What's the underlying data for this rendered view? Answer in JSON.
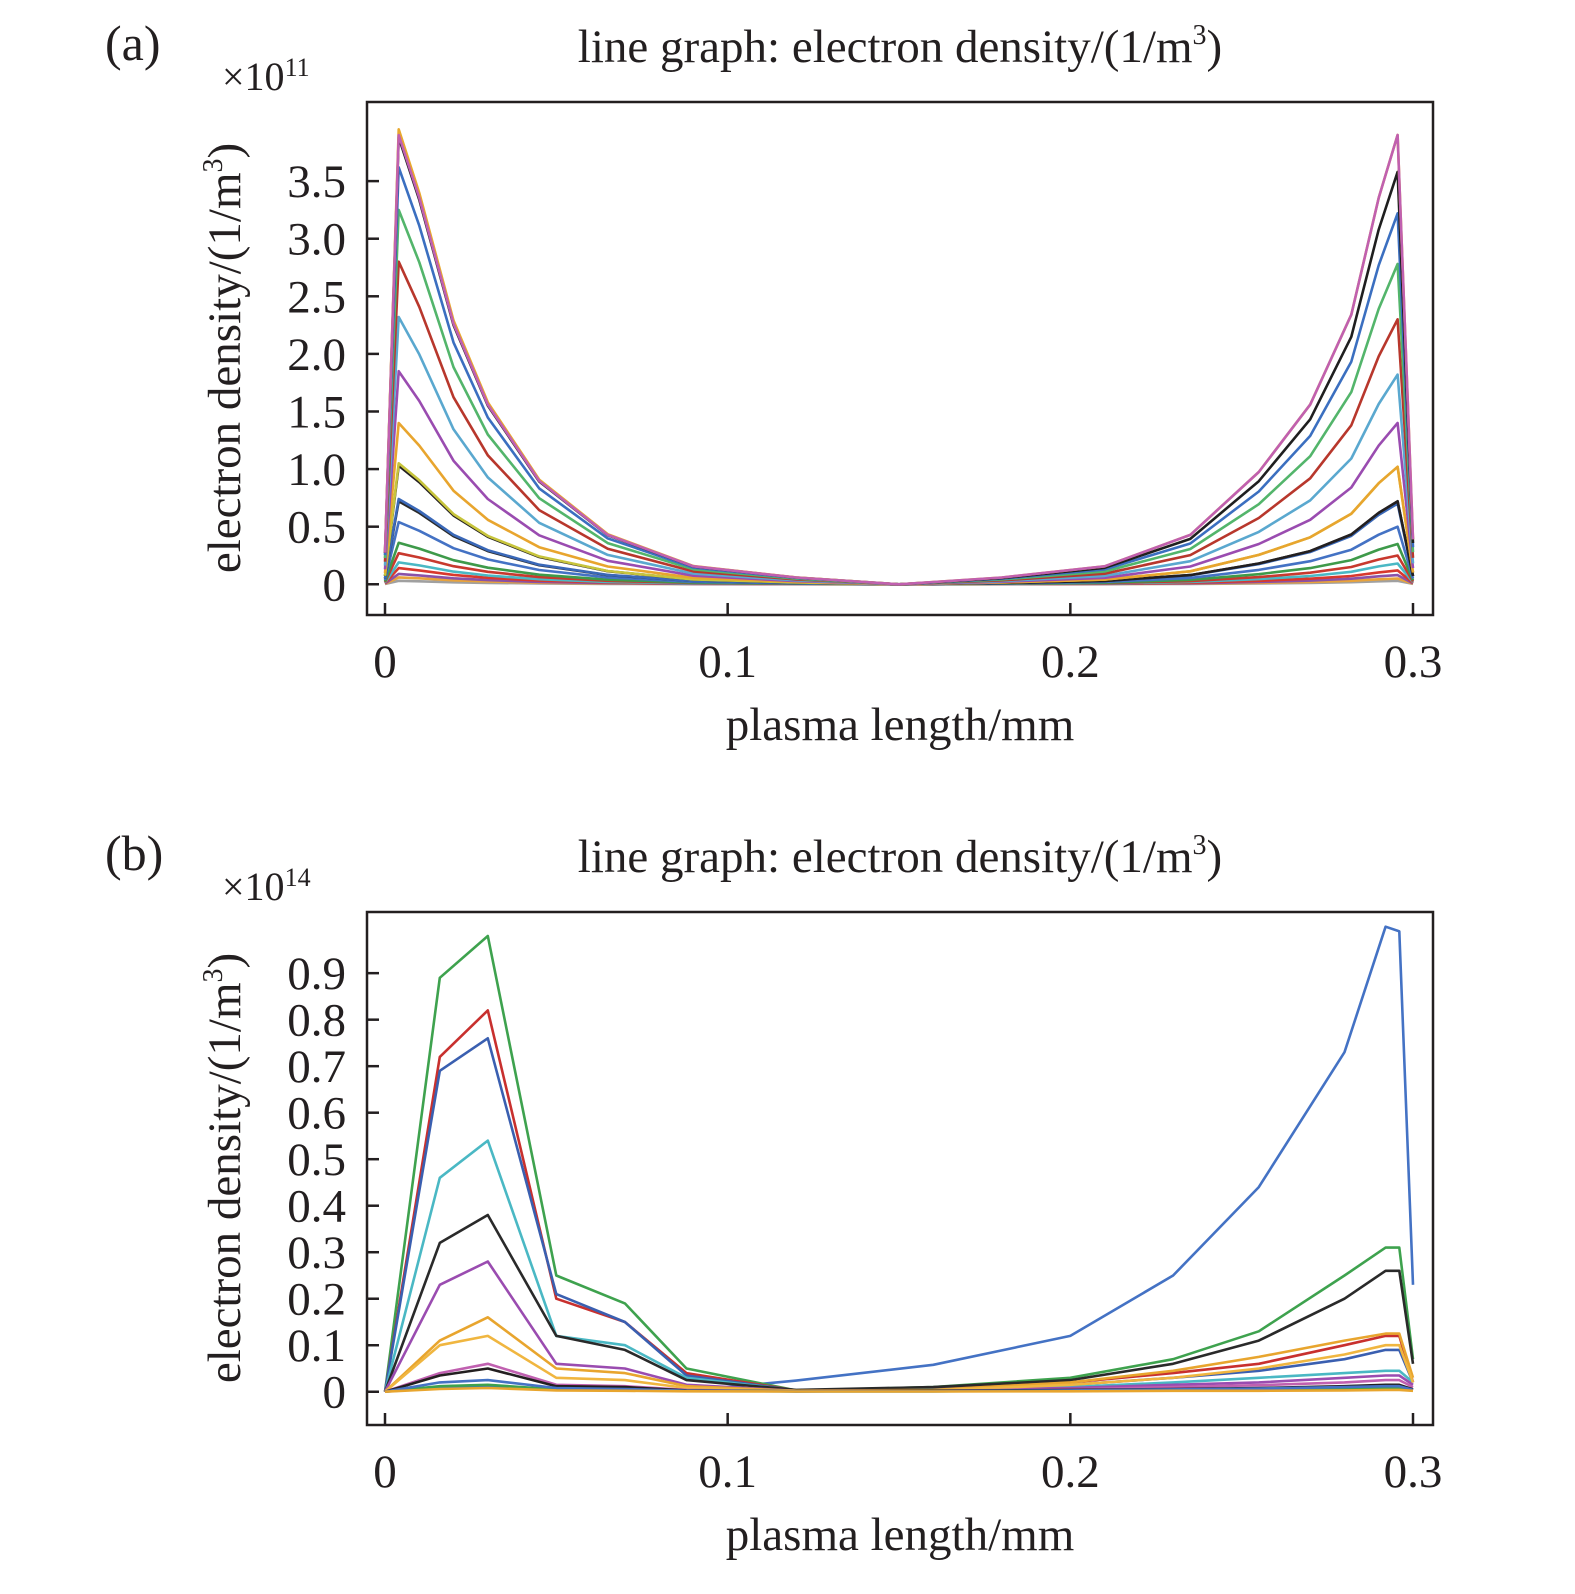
{
  "chart_data": [
    {
      "type": "line",
      "panel_label": "(a)",
      "title": "line graph: electron density/(1/m³)",
      "title_main": "line graph: electron density/(1/m",
      "title_sup": "3",
      "title_close": ")",
      "xlabel": "plasma length/mm",
      "ylabel": "electron density/(1/m³)",
      "ylabel_main": "electron density/(1/m",
      "ylabel_sup": "3",
      "ylabel_close": ")",
      "scale_prefix": "×10",
      "scale_exponent": "11",
      "xlim": [
        0,
        0.3
      ],
      "ylim": [
        -0.18,
        4.1
      ],
      "x_ticks": [
        0,
        0.1,
        0.2,
        0.3
      ],
      "x_tick_labels": [
        "0",
        "0.1",
        "0.2",
        "0.3"
      ],
      "y_ticks": [
        0,
        0.5,
        1.0,
        1.5,
        2.0,
        2.5,
        3.0,
        3.5
      ],
      "y_tick_labels": [
        "0",
        "0.5",
        "1.0",
        "1.5",
        "2.0",
        "2.5",
        "3.0",
        "3.5"
      ],
      "x": [
        0,
        0.004,
        0.01,
        0.02,
        0.03,
        0.045,
        0.065,
        0.09,
        0.12,
        0.15,
        0.18,
        0.21,
        0.235,
        0.255,
        0.27,
        0.282,
        0.29,
        0.2955,
        0.3
      ],
      "series": [
        {
          "color": "#a0a0a0",
          "left_peak": 0.03,
          "right_peak": 0.03
        },
        {
          "color": "#e8a33c",
          "left_peak": 0.06,
          "right_peak": 0.05
        },
        {
          "color": "#8a52a8",
          "left_peak": 0.09,
          "right_peak": 0.08
        },
        {
          "color": "#d8382d",
          "left_peak": 0.14,
          "right_peak": 0.12
        },
        {
          "color": "#4ab8c4",
          "left_peak": 0.19,
          "right_peak": 0.18
        },
        {
          "color": "#c8392e",
          "left_peak": 0.27,
          "right_peak": 0.25
        },
        {
          "color": "#3e9a4a",
          "left_peak": 0.36,
          "right_peak": 0.35
        },
        {
          "color": "#4472c4",
          "left_peak": 0.54,
          "right_peak": 0.5
        },
        {
          "color": "#2a2a2a",
          "left_peak": 0.72,
          "right_peak": 0.72
        },
        {
          "color": "#3a68b8",
          "left_peak": 0.74,
          "right_peak": 0.7
        },
        {
          "color": "#231f20",
          "left_peak": 1.03,
          "right_peak": 0.72
        },
        {
          "color": "#c7c43c",
          "left_peak": 1.05,
          "right_peak": 1.02
        },
        {
          "color": "#e8a52e",
          "left_peak": 1.4,
          "right_peak": 1.02
        },
        {
          "color": "#9a4cb0",
          "left_peak": 1.85,
          "right_peak": 1.4
        },
        {
          "color": "#5aa8cf",
          "left_peak": 2.32,
          "right_peak": 1.82
        },
        {
          "color": "#b8372c",
          "left_peak": 2.8,
          "right_peak": 2.3
        },
        {
          "color": "#53b56b",
          "left_peak": 3.25,
          "right_peak": 2.78
        },
        {
          "color": "#3b6fc0",
          "left_peak": 3.62,
          "right_peak": 3.22
        },
        {
          "color": "#1f1f1f",
          "left_peak": 3.88,
          "right_peak": 3.58
        },
        {
          "color": "#e8a82e",
          "left_peak": 3.95,
          "right_peak": 3.9
        },
        {
          "color": "#c060b0",
          "left_peak": 3.9,
          "right_peak": 3.9
        }
      ]
    },
    {
      "type": "line",
      "panel_label": "(b)",
      "title": "line graph: electron density/(1/m³)",
      "title_main": "line graph: electron density/(1/m",
      "title_sup": "3",
      "title_close": ")",
      "xlabel": "plasma length/mm",
      "ylabel": "electron density/(1/m³)",
      "ylabel_main": "electron density/(1/m",
      "ylabel_sup": "3",
      "ylabel_close": ")",
      "scale_prefix": "×10",
      "scale_exponent": "14",
      "xlim": [
        0,
        0.3
      ],
      "ylim": [
        -0.05,
        1.01
      ],
      "x_ticks": [
        0,
        0.1,
        0.2,
        0.3
      ],
      "x_tick_labels": [
        "0",
        "0.1",
        "0.2",
        "0.3"
      ],
      "y_ticks": [
        0,
        0.1,
        0.2,
        0.3,
        0.4,
        0.5,
        0.6,
        0.7,
        0.8,
        0.9
      ],
      "y_tick_labels": [
        "0",
        "0.1",
        "0.2",
        "0.3",
        "0.4",
        "0.5",
        "0.6",
        "0.7",
        "0.8",
        "0.9"
      ],
      "x": [
        0,
        0.016,
        0.03,
        0.05,
        0.07,
        0.088,
        0.12,
        0.16,
        0.2,
        0.23,
        0.255,
        0.28,
        0.292,
        0.296,
        0.3
      ],
      "series": [
        {
          "color": "#4472c4",
          "values": [
            0,
            0.009,
            0.012,
            0.006,
            0.005,
            0.002,
            0.024,
            0.058,
            0.12,
            0.25,
            0.44,
            0.73,
            1.0,
            0.99,
            0.23
          ]
        },
        {
          "color": "#3ea24e",
          "values": [
            0,
            0.89,
            0.98,
            0.25,
            0.19,
            0.05,
            0.003,
            0.01,
            0.03,
            0.07,
            0.13,
            0.25,
            0.31,
            0.31,
            0.07
          ]
        },
        {
          "color": "#c8302e",
          "values": [
            0,
            0.72,
            0.82,
            0.2,
            0.15,
            0.04,
            0.003,
            0.006,
            0.02,
            0.04,
            0.06,
            0.1,
            0.12,
            0.12,
            0.02
          ]
        },
        {
          "color": "#3a5fb0",
          "values": [
            0,
            0.69,
            0.76,
            0.21,
            0.15,
            0.035,
            0.003,
            0.005,
            0.015,
            0.03,
            0.045,
            0.07,
            0.09,
            0.09,
            0.02
          ]
        },
        {
          "color": "#4ab8c4",
          "values": [
            0,
            0.46,
            0.54,
            0.12,
            0.1,
            0.03,
            0.003,
            0.004,
            0.01,
            0.02,
            0.03,
            0.04,
            0.045,
            0.045,
            0.02
          ]
        },
        {
          "color": "#2a2a2a",
          "values": [
            0,
            0.32,
            0.38,
            0.12,
            0.09,
            0.025,
            0.004,
            0.01,
            0.025,
            0.06,
            0.11,
            0.2,
            0.26,
            0.26,
            0.06
          ]
        },
        {
          "color": "#9a4cb0",
          "values": [
            0,
            0.23,
            0.28,
            0.06,
            0.05,
            0.015,
            0.002,
            0.003,
            0.008,
            0.015,
            0.02,
            0.03,
            0.035,
            0.035,
            0.015
          ]
        },
        {
          "color": "#e8a52e",
          "values": [
            0,
            0.11,
            0.16,
            0.05,
            0.04,
            0.012,
            0.002,
            0.004,
            0.02,
            0.045,
            0.075,
            0.11,
            0.125,
            0.125,
            0.03
          ]
        },
        {
          "color": "#f0b640",
          "values": [
            0,
            0.1,
            0.12,
            0.03,
            0.025,
            0.008,
            0.002,
            0.003,
            0.015,
            0.03,
            0.05,
            0.08,
            0.1,
            0.1,
            0.02
          ]
        },
        {
          "color": "#c060b0",
          "values": [
            0,
            0.04,
            0.06,
            0.015,
            0.012,
            0.004,
            0.001,
            0.002,
            0.005,
            0.01,
            0.014,
            0.02,
            0.025,
            0.025,
            0.01
          ]
        },
        {
          "color": "#231f20",
          "values": [
            0,
            0.035,
            0.05,
            0.012,
            0.01,
            0.003,
            0.001,
            0.002,
            0.004,
            0.006,
            0.008,
            0.012,
            0.015,
            0.015,
            0.005
          ]
        },
        {
          "color": "#3ea24e",
          "values": [
            0,
            0.012,
            0.015,
            0.005,
            0.004,
            0.002,
            0.001,
            0.001,
            0.002,
            0.003,
            0.004,
            0.006,
            0.008,
            0.008,
            0.003
          ]
        },
        {
          "color": "#4472c4",
          "values": [
            0,
            0.02,
            0.025,
            0.008,
            0.006,
            0.002,
            0.001,
            0.001,
            0.003,
            0.005,
            0.007,
            0.01,
            0.012,
            0.012,
            0.004
          ]
        },
        {
          "color": "#e8a52e",
          "values": [
            0,
            0.006,
            0.008,
            0.003,
            0.002,
            0.001,
            0.0005,
            0.0005,
            0.001,
            0.002,
            0.002,
            0.003,
            0.004,
            0.004,
            0.002
          ]
        }
      ]
    }
  ]
}
